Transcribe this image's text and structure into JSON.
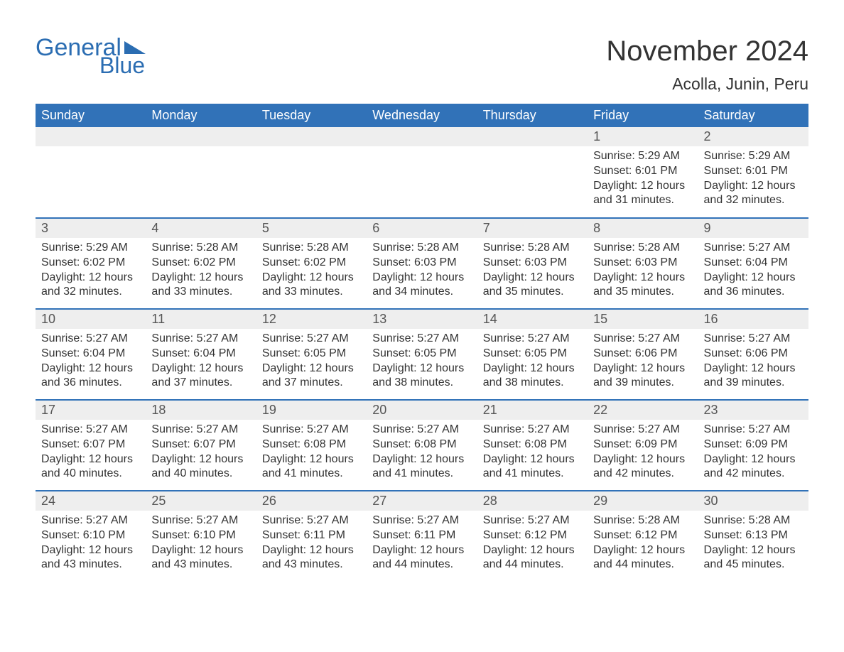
{
  "logo": {
    "text1": "General",
    "text2": "Blue",
    "accent_color": "#2b6db2"
  },
  "title": "November 2024",
  "location": "Acolla, Junin, Peru",
  "colors": {
    "header_bg": "#3172b8",
    "header_text": "#ffffff",
    "daynum_bg": "#eeeeee",
    "border": "#3172b8",
    "text": "#333333"
  },
  "weekdays": [
    "Sunday",
    "Monday",
    "Tuesday",
    "Wednesday",
    "Thursday",
    "Friday",
    "Saturday"
  ],
  "weeks": [
    [
      null,
      null,
      null,
      null,
      null,
      {
        "day": "1",
        "sunrise": "Sunrise: 5:29 AM",
        "sunset": "Sunset: 6:01 PM",
        "daylight1": "Daylight: 12 hours",
        "daylight2": "and 31 minutes."
      },
      {
        "day": "2",
        "sunrise": "Sunrise: 5:29 AM",
        "sunset": "Sunset: 6:01 PM",
        "daylight1": "Daylight: 12 hours",
        "daylight2": "and 32 minutes."
      }
    ],
    [
      {
        "day": "3",
        "sunrise": "Sunrise: 5:29 AM",
        "sunset": "Sunset: 6:02 PM",
        "daylight1": "Daylight: 12 hours",
        "daylight2": "and 32 minutes."
      },
      {
        "day": "4",
        "sunrise": "Sunrise: 5:28 AM",
        "sunset": "Sunset: 6:02 PM",
        "daylight1": "Daylight: 12 hours",
        "daylight2": "and 33 minutes."
      },
      {
        "day": "5",
        "sunrise": "Sunrise: 5:28 AM",
        "sunset": "Sunset: 6:02 PM",
        "daylight1": "Daylight: 12 hours",
        "daylight2": "and 33 minutes."
      },
      {
        "day": "6",
        "sunrise": "Sunrise: 5:28 AM",
        "sunset": "Sunset: 6:03 PM",
        "daylight1": "Daylight: 12 hours",
        "daylight2": "and 34 minutes."
      },
      {
        "day": "7",
        "sunrise": "Sunrise: 5:28 AM",
        "sunset": "Sunset: 6:03 PM",
        "daylight1": "Daylight: 12 hours",
        "daylight2": "and 35 minutes."
      },
      {
        "day": "8",
        "sunrise": "Sunrise: 5:28 AM",
        "sunset": "Sunset: 6:03 PM",
        "daylight1": "Daylight: 12 hours",
        "daylight2": "and 35 minutes."
      },
      {
        "day": "9",
        "sunrise": "Sunrise: 5:27 AM",
        "sunset": "Sunset: 6:04 PM",
        "daylight1": "Daylight: 12 hours",
        "daylight2": "and 36 minutes."
      }
    ],
    [
      {
        "day": "10",
        "sunrise": "Sunrise: 5:27 AM",
        "sunset": "Sunset: 6:04 PM",
        "daylight1": "Daylight: 12 hours",
        "daylight2": "and 36 minutes."
      },
      {
        "day": "11",
        "sunrise": "Sunrise: 5:27 AM",
        "sunset": "Sunset: 6:04 PM",
        "daylight1": "Daylight: 12 hours",
        "daylight2": "and 37 minutes."
      },
      {
        "day": "12",
        "sunrise": "Sunrise: 5:27 AM",
        "sunset": "Sunset: 6:05 PM",
        "daylight1": "Daylight: 12 hours",
        "daylight2": "and 37 minutes."
      },
      {
        "day": "13",
        "sunrise": "Sunrise: 5:27 AM",
        "sunset": "Sunset: 6:05 PM",
        "daylight1": "Daylight: 12 hours",
        "daylight2": "and 38 minutes."
      },
      {
        "day": "14",
        "sunrise": "Sunrise: 5:27 AM",
        "sunset": "Sunset: 6:05 PM",
        "daylight1": "Daylight: 12 hours",
        "daylight2": "and 38 minutes."
      },
      {
        "day": "15",
        "sunrise": "Sunrise: 5:27 AM",
        "sunset": "Sunset: 6:06 PM",
        "daylight1": "Daylight: 12 hours",
        "daylight2": "and 39 minutes."
      },
      {
        "day": "16",
        "sunrise": "Sunrise: 5:27 AM",
        "sunset": "Sunset: 6:06 PM",
        "daylight1": "Daylight: 12 hours",
        "daylight2": "and 39 minutes."
      }
    ],
    [
      {
        "day": "17",
        "sunrise": "Sunrise: 5:27 AM",
        "sunset": "Sunset: 6:07 PM",
        "daylight1": "Daylight: 12 hours",
        "daylight2": "and 40 minutes."
      },
      {
        "day": "18",
        "sunrise": "Sunrise: 5:27 AM",
        "sunset": "Sunset: 6:07 PM",
        "daylight1": "Daylight: 12 hours",
        "daylight2": "and 40 minutes."
      },
      {
        "day": "19",
        "sunrise": "Sunrise: 5:27 AM",
        "sunset": "Sunset: 6:08 PM",
        "daylight1": "Daylight: 12 hours",
        "daylight2": "and 41 minutes."
      },
      {
        "day": "20",
        "sunrise": "Sunrise: 5:27 AM",
        "sunset": "Sunset: 6:08 PM",
        "daylight1": "Daylight: 12 hours",
        "daylight2": "and 41 minutes."
      },
      {
        "day": "21",
        "sunrise": "Sunrise: 5:27 AM",
        "sunset": "Sunset: 6:08 PM",
        "daylight1": "Daylight: 12 hours",
        "daylight2": "and 41 minutes."
      },
      {
        "day": "22",
        "sunrise": "Sunrise: 5:27 AM",
        "sunset": "Sunset: 6:09 PM",
        "daylight1": "Daylight: 12 hours",
        "daylight2": "and 42 minutes."
      },
      {
        "day": "23",
        "sunrise": "Sunrise: 5:27 AM",
        "sunset": "Sunset: 6:09 PM",
        "daylight1": "Daylight: 12 hours",
        "daylight2": "and 42 minutes."
      }
    ],
    [
      {
        "day": "24",
        "sunrise": "Sunrise: 5:27 AM",
        "sunset": "Sunset: 6:10 PM",
        "daylight1": "Daylight: 12 hours",
        "daylight2": "and 43 minutes."
      },
      {
        "day": "25",
        "sunrise": "Sunrise: 5:27 AM",
        "sunset": "Sunset: 6:10 PM",
        "daylight1": "Daylight: 12 hours",
        "daylight2": "and 43 minutes."
      },
      {
        "day": "26",
        "sunrise": "Sunrise: 5:27 AM",
        "sunset": "Sunset: 6:11 PM",
        "daylight1": "Daylight: 12 hours",
        "daylight2": "and 43 minutes."
      },
      {
        "day": "27",
        "sunrise": "Sunrise: 5:27 AM",
        "sunset": "Sunset: 6:11 PM",
        "daylight1": "Daylight: 12 hours",
        "daylight2": "and 44 minutes."
      },
      {
        "day": "28",
        "sunrise": "Sunrise: 5:27 AM",
        "sunset": "Sunset: 6:12 PM",
        "daylight1": "Daylight: 12 hours",
        "daylight2": "and 44 minutes."
      },
      {
        "day": "29",
        "sunrise": "Sunrise: 5:28 AM",
        "sunset": "Sunset: 6:12 PM",
        "daylight1": "Daylight: 12 hours",
        "daylight2": "and 44 minutes."
      },
      {
        "day": "30",
        "sunrise": "Sunrise: 5:28 AM",
        "sunset": "Sunset: 6:13 PM",
        "daylight1": "Daylight: 12 hours",
        "daylight2": "and 45 minutes."
      }
    ]
  ]
}
